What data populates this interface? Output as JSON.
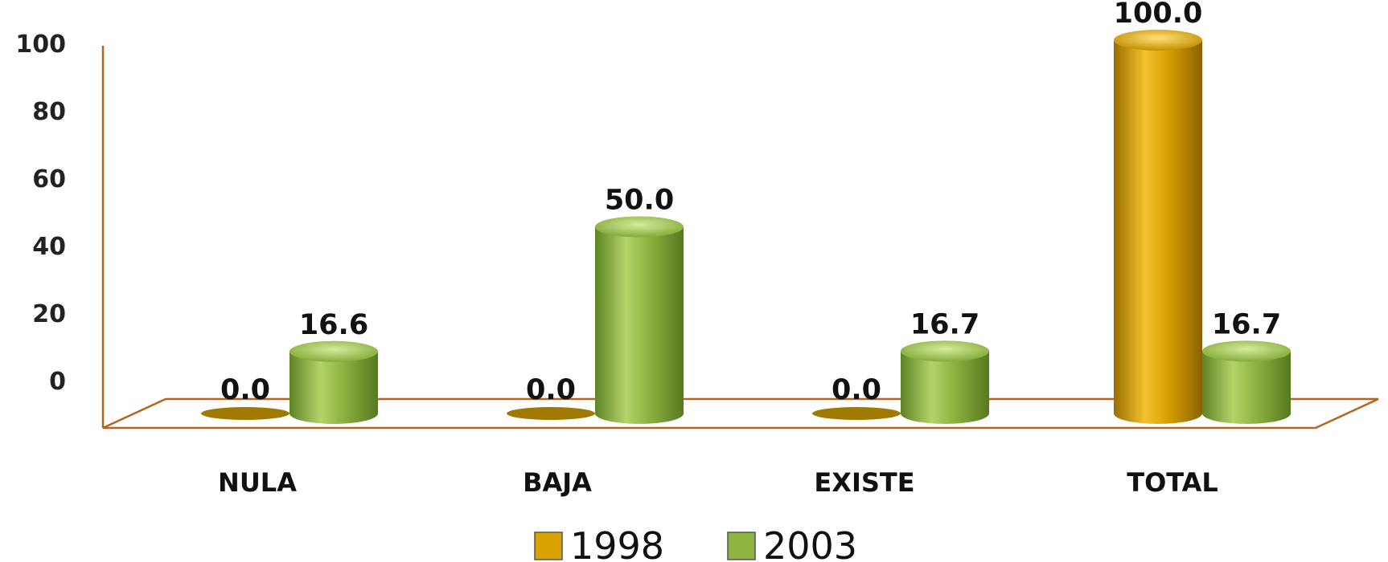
{
  "chart_data": {
    "type": "bar",
    "categories": [
      "NULA",
      "BAJA",
      "EXISTE",
      "TOTAL"
    ],
    "series": [
      {
        "name": "1998",
        "values": [
          0.0,
          0.0,
          0.0,
          100.0
        ]
      },
      {
        "name": "2003",
        "values": [
          16.6,
          50.0,
          16.7,
          16.7
        ]
      }
    ],
    "data_labels": [
      [
        "0.0",
        "0.0",
        "0.0",
        "100.0"
      ],
      [
        "16.6",
        "50.0",
        "16.7",
        "16.7"
      ]
    ],
    "y_ticks": [
      "0",
      "20",
      "40",
      "60",
      "80",
      "100"
    ],
    "ylim": [
      0,
      100
    ],
    "legend_position": "bottom",
    "style": "3d-cylinder",
    "colors": {
      "series_1998": "#D9A200",
      "series_2003": "#8DB440",
      "axis": "#B5651D"
    }
  }
}
